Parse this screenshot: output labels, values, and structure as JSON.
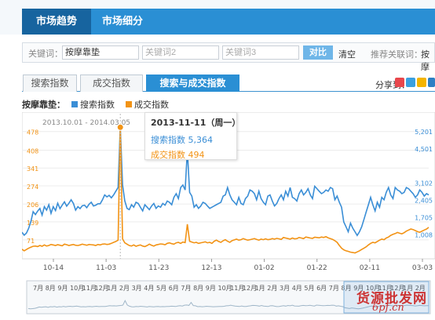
{
  "nav": {
    "tab_trend": "市场趋势",
    "tab_segment": "市场细分"
  },
  "keywords": {
    "label": "关键词：",
    "kw1": "按摩靠垫",
    "kw2_placeholder": "关键词2",
    "kw3_placeholder": "关键词3",
    "compare_button": "对比",
    "clear_link": "清空",
    "recommend_label": "推荐关联词：",
    "recommend_item": "按摩"
  },
  "tabs": [
    "搜索指数",
    "成交指数",
    "搜索与成交指数"
  ],
  "share": {
    "label": "分享到：",
    "icons": [
      "weibo-icon",
      "qzone-icon",
      "star-icon",
      "people-icon"
    ]
  },
  "legend": {
    "keyword": "按摩靠垫：",
    "series1": "搜索指数",
    "series2": "成交指数"
  },
  "tooltip": {
    "date": "2013-11-11（周一）",
    "search_label": "搜索指数",
    "search_value": "5,364",
    "trade_label": "成交指数",
    "trade_value": "494"
  },
  "watermark": {
    "line1": "货源批发网",
    "line2": "6pf.cn"
  },
  "colors": {
    "search": "#3a8ed6",
    "trade": "#f29315",
    "accent": "#2a8fd4"
  },
  "chart_data": {
    "type": "line",
    "date_range": "2013.10.01 - 2014.03.05",
    "x_ticks": [
      "10-14",
      "11-03",
      "11-23",
      "12-13",
      "01-02",
      "01-22",
      "02-11",
      "03-03"
    ],
    "y_left_ticks": [
      "478",
      "408",
      "341",
      "274",
      "206",
      "139",
      "71"
    ],
    "y_right_ticks": [
      "5,201",
      "4,501",
      "3,102",
      "2,405",
      "1,705",
      "1,008"
    ],
    "y_left_range": [
      0,
      545
    ],
    "y_right_range": [
      0,
      5900
    ],
    "series": [
      {
        "name": "搜索指数",
        "axis": "right",
        "values": [
          1080,
          960,
          1050,
          1240,
          1520,
          1920,
          1800,
          1940,
          2050,
          1780,
          2120,
          1980,
          2200,
          1850,
          2120,
          1960,
          2260,
          2040,
          2180,
          2320,
          2140,
          2260,
          2400,
          2250,
          1980,
          2120,
          2040,
          2160,
          2180,
          2080,
          2220,
          2300,
          2150,
          2180,
          2240,
          2240,
          2400,
          2600,
          2520,
          2580,
          2480,
          2600,
          2750,
          2900,
          5364,
          3000,
          2360,
          2050,
          2000,
          2200,
          2100,
          2300,
          2250,
          2100,
          1950,
          2200,
          2100,
          2000,
          2150,
          2250,
          2050,
          2150,
          2100,
          2250,
          2180,
          2350,
          2300,
          2200,
          2500,
          2650,
          2450,
          2900,
          3000,
          2800,
          4400,
          2700,
          2550,
          2100,
          2200,
          2050,
          2150,
          2300,
          2250,
          2150,
          2050,
          2100,
          2150,
          2200,
          2250,
          2300,
          2550,
          2600,
          2900,
          2600,
          2400,
          2300,
          2200,
          2500,
          2250,
          2200,
          2450,
          2550,
          2800,
          2750,
          2650,
          2400,
          2750,
          2450,
          2300,
          2200,
          2550,
          2600,
          2350,
          2150,
          2250,
          2450,
          2600,
          2400,
          2750,
          2550,
          2900,
          2500,
          2450,
          2350,
          2650,
          2800,
          2600,
          2700,
          2850,
          2600,
          2450,
          2950,
          2850,
          2750,
          2650,
          2700,
          2800,
          2750,
          2900,
          2850,
          2400,
          2550,
          2300,
          2100,
          1500,
          1300,
          1100,
          1450,
          1250,
          1100,
          950,
          1100,
          1300,
          1600,
          1900,
          2200,
          2500,
          2200,
          1950,
          2300,
          2100,
          2500,
          2400,
          2700,
          2900,
          2600,
          2450,
          2900,
          2800,
          2750,
          2650,
          2700,
          2900,
          2850,
          2750,
          2650,
          2500,
          2600,
          2800,
          2700,
          2550,
          2650,
          2600
        ]
      },
      {
        "name": "成交指数",
        "axis": "left",
        "values": [
          36,
          30,
          35,
          40,
          44,
          47,
          48,
          46,
          50,
          47,
          52,
          48,
          50,
          54,
          52,
          50,
          53,
          51,
          49,
          55,
          53,
          50,
          52,
          54,
          51,
          50,
          52,
          55,
          53,
          51,
          54,
          53,
          52,
          50,
          54,
          52,
          55,
          56,
          54,
          55,
          58,
          62,
          65,
          70,
          494,
          75,
          60,
          55,
          50,
          48,
          52,
          47,
          50,
          52,
          48,
          46,
          50,
          55,
          51,
          48,
          52,
          54,
          56,
          55,
          53,
          58,
          60,
          57,
          55,
          60,
          62,
          58,
          63,
          61,
          130,
          66,
          63,
          60,
          62,
          58,
          60,
          62,
          64,
          60,
          62,
          58,
          66,
          70,
          65,
          62,
          68,
          72,
          66,
          62,
          68,
          71,
          74,
          70,
          72,
          76,
          73,
          70,
          72,
          74,
          76,
          73,
          70,
          74,
          72,
          75,
          72,
          73,
          76,
          74,
          77,
          75,
          73,
          80,
          78,
          76,
          74,
          78,
          75,
          76,
          80,
          78,
          76,
          82,
          80,
          78,
          77,
          81,
          80,
          79,
          82,
          80,
          83,
          79,
          76,
          73,
          68,
          62,
          50,
          40,
          34,
          30,
          28,
          25,
          24,
          22,
          26,
          30,
          35,
          40,
          45,
          52,
          58,
          62,
          60,
          65,
          70,
          74,
          72,
          78,
          82,
          88,
          92,
          95,
          99,
          96,
          94,
          98,
          104,
          108,
          112,
          110,
          106,
          102,
          100,
          104,
          108,
          112,
          118
        ]
      }
    ]
  }
}
